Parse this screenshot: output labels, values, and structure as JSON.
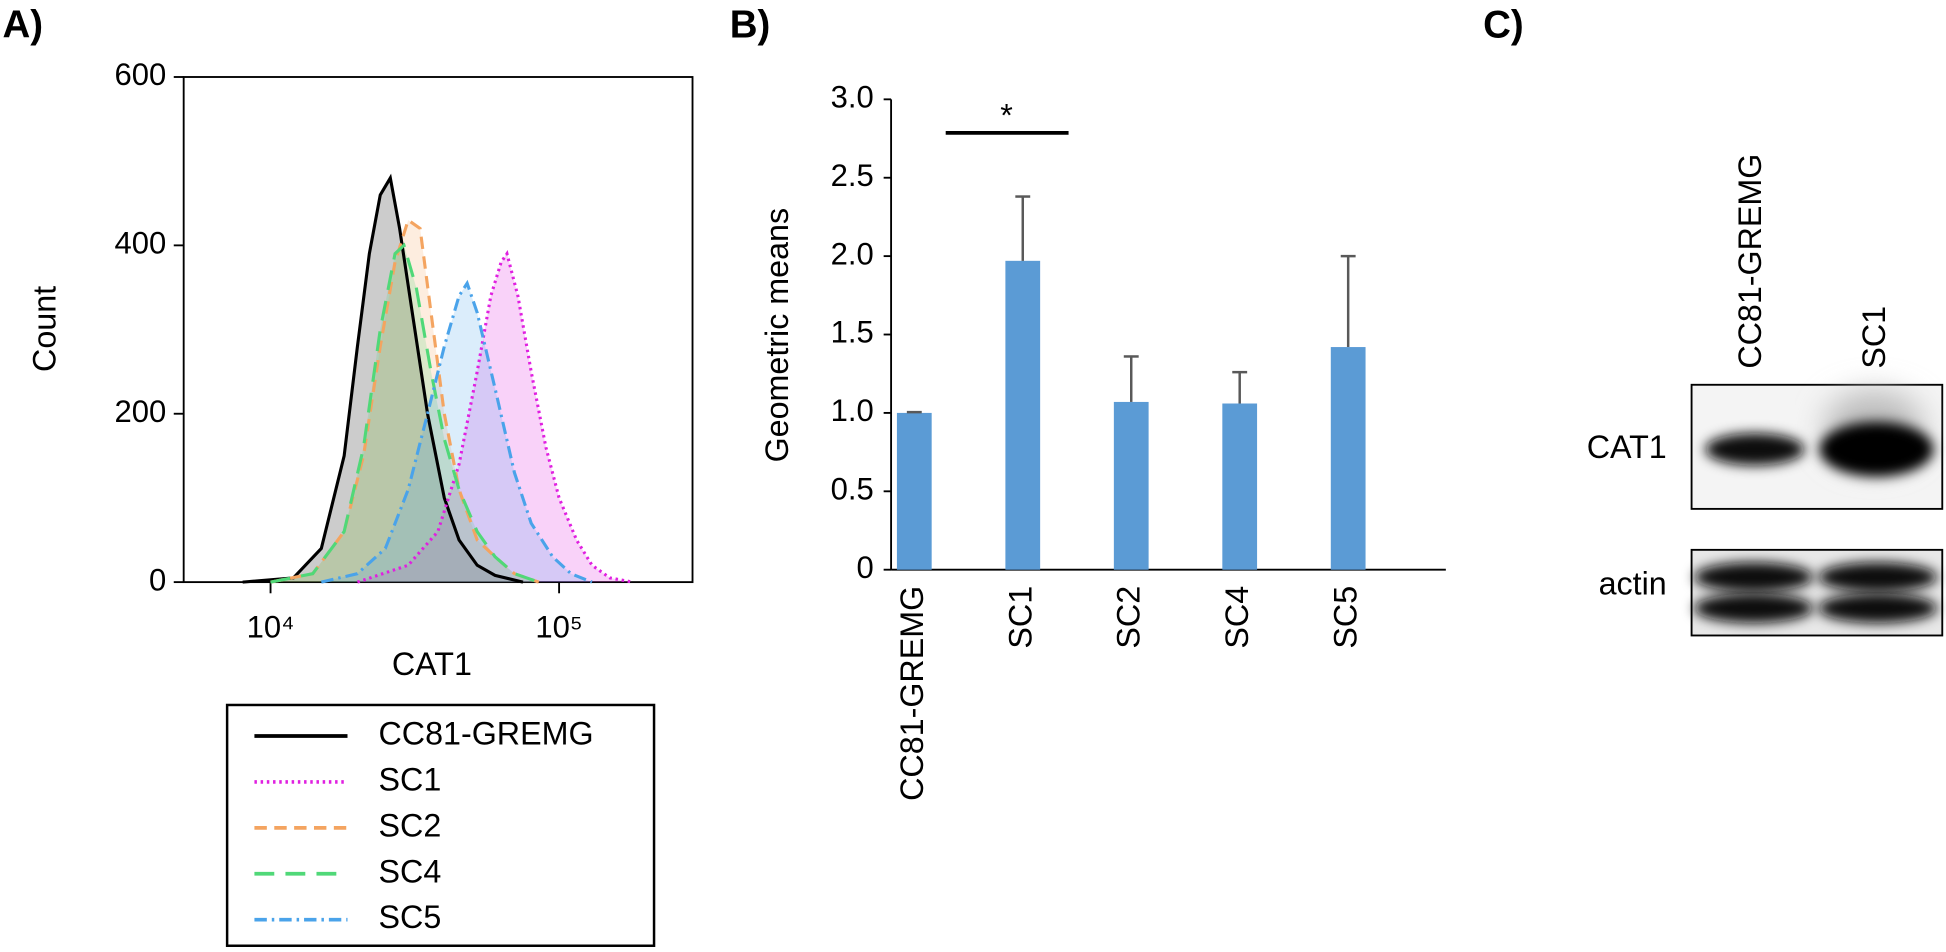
{
  "chart_data": [
    {
      "type": "line",
      "panel": "A)",
      "xlabel": "CAT1",
      "ylabel": "Count",
      "xscale": "log",
      "xlim": [
        5000,
        290000
      ],
      "ylim": [
        0,
        600
      ],
      "xticks": [
        {
          "value": 10000,
          "label": "10⁴"
        },
        {
          "value": 100000,
          "label": "10⁵"
        }
      ],
      "yticks": [
        0,
        200,
        400,
        600
      ],
      "legend": "below",
      "fill": true,
      "series": [
        {
          "name": "CC81-GREMG",
          "color": "#000000",
          "style": "solid",
          "x": [
            8000,
            12000,
            15000,
            18000,
            20000,
            22000,
            24000,
            26000,
            28000,
            31000,
            35000,
            40000,
            45000,
            52000,
            60000,
            75000
          ],
          "values": [
            0,
            5,
            40,
            150,
            280,
            390,
            460,
            480,
            420,
            320,
            200,
            100,
            50,
            20,
            8,
            0
          ]
        },
        {
          "name": "SC1",
          "color": "#e020e0",
          "style": "dotted",
          "x": [
            20000,
            30000,
            38000,
            45000,
            52000,
            58000,
            63000,
            66000,
            72000,
            80000,
            90000,
            100000,
            115000,
            130000,
            150000,
            180000
          ],
          "values": [
            0,
            20,
            60,
            140,
            250,
            340,
            380,
            390,
            340,
            250,
            160,
            100,
            50,
            20,
            5,
            0
          ]
        },
        {
          "name": "SC2",
          "color": "#f4a460",
          "style": "dashed",
          "x": [
            10000,
            14000,
            18000,
            21000,
            24000,
            27000,
            30000,
            33000,
            36000,
            40000,
            45000,
            52000,
            60000,
            70000,
            85000
          ],
          "values": [
            0,
            10,
            60,
            150,
            280,
            380,
            430,
            420,
            320,
            200,
            110,
            50,
            30,
            10,
            0
          ]
        },
        {
          "name": "SC4",
          "color": "#50d878",
          "style": "long-dashed",
          "x": [
            10000,
            14000,
            18000,
            21000,
            24000,
            27000,
            29000,
            32000,
            36000,
            40000,
            45000,
            52000,
            60000,
            70000,
            85000
          ],
          "values": [
            0,
            10,
            60,
            160,
            300,
            390,
            400,
            350,
            250,
            170,
            110,
            60,
            30,
            10,
            0
          ]
        },
        {
          "name": "SC5",
          "color": "#4aa3ea",
          "style": "dash-dot",
          "x": [
            15000,
            20000,
            25000,
            30000,
            35000,
            40000,
            45000,
            48000,
            52000,
            60000,
            70000,
            80000,
            95000,
            110000,
            130000
          ],
          "values": [
            0,
            10,
            40,
            110,
            200,
            280,
            340,
            355,
            320,
            230,
            130,
            70,
            30,
            10,
            0
          ]
        }
      ]
    },
    {
      "type": "bar",
      "panel": "B)",
      "ylabel": "Geometric means",
      "annotation": "*",
      "categories": [
        "CC81-GREMG",
        "SC1",
        "SC2",
        "SC4",
        "SC5"
      ],
      "values": [
        1.0,
        1.97,
        1.07,
        1.06,
        1.42
      ],
      "errors": [
        0.005,
        0.41,
        0.29,
        0.2,
        0.58
      ],
      "color": "#5b9bd5",
      "error_color": "#595959",
      "ylim": [
        0,
        3
      ],
      "yticks": [
        0,
        0.5,
        {
          "value": 1,
          "label": "1.0"
        },
        1.5,
        {
          "value": 2,
          "label": "2.0"
        },
        2.5,
        {
          "value": 3,
          "label": "3.0"
        }
      ]
    }
  ],
  "blot": {
    "panel": "C)",
    "lanes": [
      "CC81-GREMG",
      "SC1"
    ],
    "rows": [
      "CAT1",
      "actin"
    ]
  }
}
